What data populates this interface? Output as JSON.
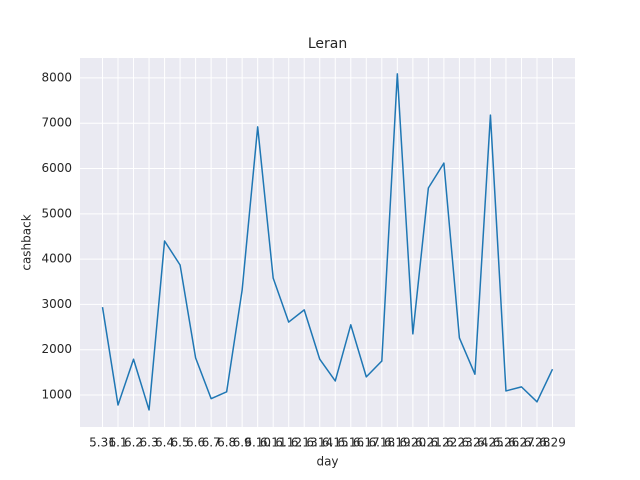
{
  "chart_data": {
    "type": "line",
    "title": "Leran",
    "x_label": "day",
    "y_label": "cashback",
    "categories": [
      "5.31",
      "6.1",
      "6.2",
      "6.3",
      "6.4",
      "6.5",
      "6.6",
      "6.7",
      "6.8",
      "6.9",
      "6.10",
      "6.11",
      "6.12",
      "6.13",
      "6.14",
      "6.15",
      "6.16",
      "6.17",
      "6.18",
      "6.19",
      "6.20",
      "6.21",
      "6.22",
      "6.23",
      "6.24",
      "6.25",
      "6.26",
      "6.27",
      "6.28",
      "6.29"
    ],
    "series": [
      {
        "name": "cashback",
        "color": "#1f77b4",
        "values": [
          2940,
          780,
          1790,
          670,
          4400,
          3870,
          1820,
          920,
          1070,
          3320,
          6920,
          3580,
          2610,
          2880,
          1790,
          1310,
          2550,
          1400,
          1750,
          8090,
          2350,
          5570,
          6120,
          2260,
          1460,
          7180,
          1090,
          1180,
          850,
          1570
        ]
      }
    ],
    "ylim": [
      294,
      8440
    ],
    "yticks": [
      1000,
      2000,
      3000,
      4000,
      5000,
      6000,
      7000,
      8000
    ],
    "grid": true
  }
}
